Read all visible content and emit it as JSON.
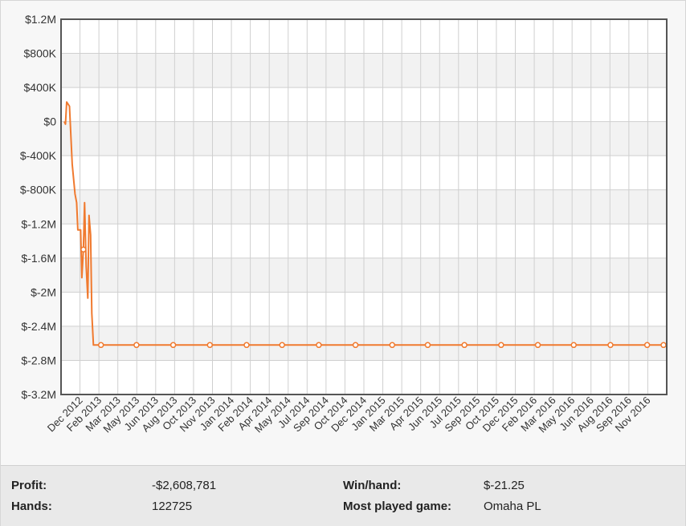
{
  "chart_data": {
    "type": "line",
    "title": "",
    "xlabel": "",
    "ylabel": "",
    "ylim": [
      -3200000,
      1200000
    ],
    "y_ticks": [
      1200000,
      800000,
      400000,
      0,
      -400000,
      -800000,
      -1200000,
      -1600000,
      -2000000,
      -2400000,
      -2800000,
      -3200000
    ],
    "y_tick_labels": [
      "$1.2M",
      "$800K",
      "$400K",
      "$0",
      "$-400K",
      "$-800K",
      "$-1.2M",
      "$-1.6M",
      "$-2M",
      "$-2.4M",
      "$-2.8M",
      "$-3.2M"
    ],
    "x_tick_labels": [
      "Dec 2012",
      "Feb 2013",
      "Mar 2013",
      "May 2013",
      "Jun 2013",
      "Aug 2013",
      "Oct 2013",
      "Nov 2013",
      "Jan 2014",
      "Feb 2014",
      "Apr 2014",
      "May 2014",
      "Jul 2014",
      "Sep 2014",
      "Oct 2014",
      "Dec 2014",
      "Jan 2015",
      "Mar 2015",
      "Apr 2015",
      "Jun 2015",
      "Jul 2015",
      "Sep 2015",
      "Oct 2015",
      "Dec 2015",
      "Feb 2016",
      "Mar 2016",
      "May 2016",
      "Jun 2016",
      "Aug 2016",
      "Sep 2016",
      "Nov 2016"
    ],
    "grid": true,
    "colors": {
      "line": "#f07a2f",
      "grid": "#cfcfcf",
      "band": "#f2f2f2",
      "axis": "#555555"
    },
    "series": [
      {
        "values": [
          [
            "2012-11-20",
            0
          ],
          [
            "2012-11-23",
            -30000
          ],
          [
            "2012-11-26",
            230000
          ],
          [
            "2012-12-03",
            180000
          ],
          [
            "2012-12-10",
            -500000
          ],
          [
            "2012-12-17",
            -850000
          ],
          [
            "2012-12-21",
            -950000
          ],
          [
            "2012-12-24",
            -1270000
          ],
          [
            "2012-12-31",
            -1270000
          ],
          [
            "2013-01-03",
            -1830000
          ],
          [
            "2013-01-07",
            -1500000
          ],
          [
            "2013-01-10",
            -950000
          ],
          [
            "2013-01-14",
            -1700000
          ],
          [
            "2013-01-18",
            -2070000
          ],
          [
            "2013-01-21",
            -1100000
          ],
          [
            "2013-01-25",
            -1330000
          ],
          [
            "2013-01-28",
            -2250000
          ],
          [
            "2013-02-01",
            -2620000
          ],
          [
            "2013-02-20",
            -2620000
          ],
          [
            "2013-03-31",
            -2620000
          ],
          [
            "2013-06-30",
            -2620000
          ],
          [
            "2013-09-30",
            -2620000
          ],
          [
            "2013-12-31",
            -2620000
          ],
          [
            "2014-03-31",
            -2620000
          ],
          [
            "2014-06-30",
            -2620000
          ],
          [
            "2014-09-30",
            -2620000
          ],
          [
            "2014-12-31",
            -2620000
          ],
          [
            "2015-03-31",
            -2620000
          ],
          [
            "2015-06-30",
            -2620000
          ],
          [
            "2015-09-30",
            -2620000
          ],
          [
            "2015-12-31",
            -2620000
          ],
          [
            "2016-03-31",
            -2620000
          ],
          [
            "2016-06-30",
            -2620000
          ],
          [
            "2016-09-30",
            -2620000
          ],
          [
            "2016-12-31",
            -2620000
          ]
        ],
        "markers": [
          [
            "2013-01-07",
            -1500000
          ],
          [
            "2013-02-20",
            -2620000
          ],
          [
            "2013-05-20",
            -2620000
          ],
          [
            "2013-08-20",
            -2620000
          ],
          [
            "2013-11-20",
            -2620000
          ],
          [
            "2014-02-20",
            -2620000
          ],
          [
            "2014-05-20",
            -2620000
          ],
          [
            "2014-08-20",
            -2620000
          ],
          [
            "2014-11-20",
            -2620000
          ],
          [
            "2015-02-20",
            -2620000
          ],
          [
            "2015-05-20",
            -2620000
          ],
          [
            "2015-08-20",
            -2620000
          ],
          [
            "2015-11-20",
            -2620000
          ],
          [
            "2016-02-20",
            -2620000
          ],
          [
            "2016-05-20",
            -2620000
          ],
          [
            "2016-08-20",
            -2620000
          ],
          [
            "2016-11-20",
            -2620000
          ],
          [
            "2016-12-31",
            -2620000
          ]
        ]
      }
    ]
  },
  "stats": {
    "profit_label": "Profit:",
    "profit_value": "-$2,608,781",
    "winhand_label": "Win/hand:",
    "winhand_value": "$-21.25",
    "hands_label": "Hands:",
    "hands_value": "122725",
    "game_label": "Most played game:",
    "game_value": "Omaha PL"
  }
}
